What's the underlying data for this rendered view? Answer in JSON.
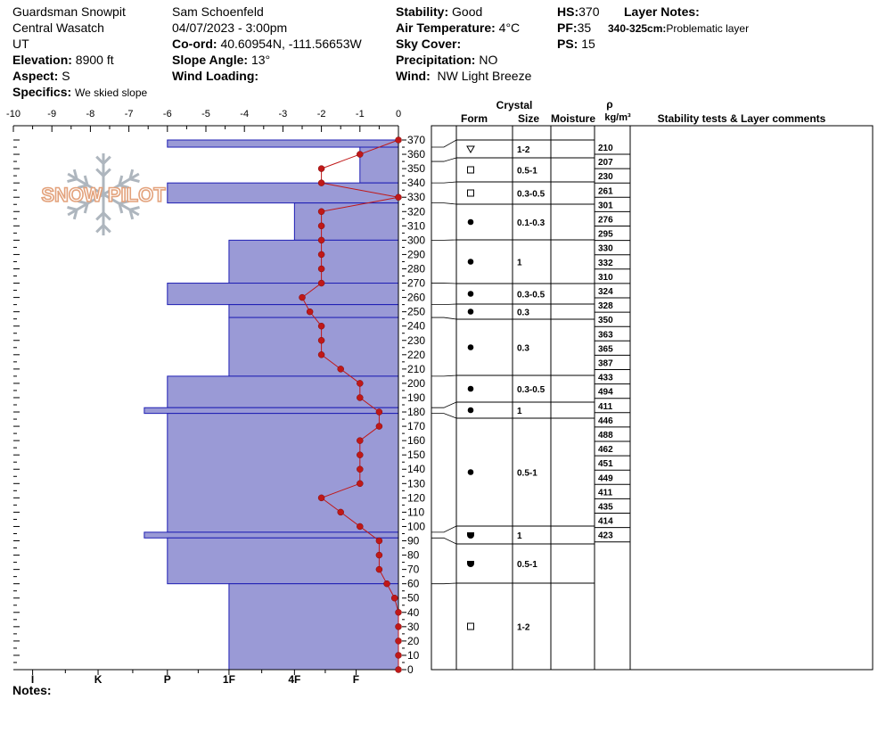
{
  "header": {
    "pit_name": "Guardsman Snowpit",
    "range": "Central Wasatch",
    "state": "UT",
    "elevation_label": "Elevation:",
    "elevation": "8900 ft",
    "aspect_label": "Aspect:",
    "aspect": "S",
    "specifics_label": "Specifics:",
    "specifics": "We skied slope",
    "observer": "Sam Schoenfeld",
    "datetime": "04/07/2023 - 3:00pm",
    "coord_label": "Co-ord:",
    "coord": "40.60954N, -111.56653W",
    "slope_label": "Slope Angle:",
    "slope": "13°",
    "wind_loading_label": "Wind Loading:",
    "wind_loading": "",
    "stability_label": "Stability:",
    "stability": "Good",
    "airtemp_label": "Air Temperature:",
    "airtemp": "4°C",
    "sky_label": "Sky Cover:",
    "sky": "",
    "precip_label": "Precipitation:",
    "precip": "NO",
    "wind_label": "Wind:",
    "wind": "NW Light Breeze",
    "hs_label": "HS:",
    "hs": "370",
    "pf_label": "PF:",
    "pf": "35",
    "ps_label": "PS:",
    "ps": "15",
    "layer_notes_label": "Layer Notes:",
    "layer_note_range": "340-325cm:",
    "layer_note_text": "Problematic layer"
  },
  "notes_label": "Notes:",
  "watermark": "SNOW PILOT",
  "colors": {
    "hardness_fill": "#9a9ad6",
    "hardness_stroke": "#1f1fb4",
    "temp_line": "#c01818",
    "grid": "#000000"
  },
  "table_headers": {
    "crystal": "Crystal",
    "form": "Form",
    "size": "Size",
    "moisture": "Moisture",
    "rho": "ρ",
    "density_unit": "kg/m³",
    "comments": "Stability tests & Layer comments"
  },
  "chart_data": {
    "type": "snow-profile",
    "temp_axis": {
      "min": -10,
      "max": 0,
      "ticks": [
        -10,
        -9,
        -8,
        -7,
        -6,
        -5,
        -4,
        -3,
        -2,
        -1,
        0
      ]
    },
    "height_axis": {
      "min": 0,
      "max": 370,
      "ticks": [
        0,
        10,
        20,
        30,
        40,
        50,
        60,
        70,
        80,
        90,
        100,
        110,
        120,
        130,
        140,
        150,
        160,
        170,
        180,
        190,
        200,
        210,
        220,
        230,
        240,
        250,
        260,
        270,
        280,
        290,
        300,
        310,
        320,
        330,
        340,
        350,
        360,
        370
      ]
    },
    "hardness_labels": [
      "I",
      "K",
      "P",
      "1F",
      "4F",
      "F"
    ],
    "hardness_layers": [
      {
        "bottom": 365,
        "top": 370,
        "hardness_temp": -6
      },
      {
        "bottom": 340,
        "top": 365,
        "hardness_temp": -1
      },
      {
        "bottom": 326,
        "top": 340,
        "hardness_temp": -6
      },
      {
        "bottom": 300,
        "top": 326,
        "hardness_temp": -2.7
      },
      {
        "bottom": 270,
        "top": 300,
        "hardness_temp": -4.4
      },
      {
        "bottom": 255,
        "top": 270,
        "hardness_temp": -6
      },
      {
        "bottom": 246,
        "top": 255,
        "hardness_temp": -4.4
      },
      {
        "bottom": 205,
        "top": 246,
        "hardness_temp": -4.4
      },
      {
        "bottom": 183,
        "top": 205,
        "hardness_temp": -6
      },
      {
        "bottom": 179,
        "top": 183,
        "hardness_temp": -6.6
      },
      {
        "bottom": 96,
        "top": 179,
        "hardness_temp": -6
      },
      {
        "bottom": 92,
        "top": 96,
        "hardness_temp": -6.6
      },
      {
        "bottom": 60,
        "top": 92,
        "hardness_temp": -6
      },
      {
        "bottom": 0,
        "top": 60,
        "hardness_temp": -4.4
      }
    ],
    "temperature_profile": [
      {
        "h": 370,
        "t": 0
      },
      {
        "h": 360,
        "t": -1
      },
      {
        "h": 350,
        "t": -2
      },
      {
        "h": 340,
        "t": -2
      },
      {
        "h": 330,
        "t": 0
      },
      {
        "h": 320,
        "t": -2
      },
      {
        "h": 310,
        "t": -2
      },
      {
        "h": 300,
        "t": -2
      },
      {
        "h": 290,
        "t": -2
      },
      {
        "h": 280,
        "t": -2
      },
      {
        "h": 270,
        "t": -2
      },
      {
        "h": 260,
        "t": -2.5
      },
      {
        "h": 250,
        "t": -2.3
      },
      {
        "h": 240,
        "t": -2
      },
      {
        "h": 230,
        "t": -2
      },
      {
        "h": 220,
        "t": -2
      },
      {
        "h": 210,
        "t": -1.5
      },
      {
        "h": 200,
        "t": -1
      },
      {
        "h": 190,
        "t": -1
      },
      {
        "h": 180,
        "t": -0.5
      },
      {
        "h": 170,
        "t": -0.5
      },
      {
        "h": 160,
        "t": -1
      },
      {
        "h": 150,
        "t": -1
      },
      {
        "h": 140,
        "t": -1
      },
      {
        "h": 130,
        "t": -1
      },
      {
        "h": 120,
        "t": -2
      },
      {
        "h": 110,
        "t": -1.5
      },
      {
        "h": 100,
        "t": -1
      },
      {
        "h": 90,
        "t": -0.5
      },
      {
        "h": 80,
        "t": -0.5
      },
      {
        "h": 70,
        "t": -0.5
      },
      {
        "h": 60,
        "t": -0.3
      },
      {
        "h": 50,
        "t": -0.1
      },
      {
        "h": 40,
        "t": 0
      },
      {
        "h": 30,
        "t": 0
      },
      {
        "h": 20,
        "t": 0
      },
      {
        "h": 10,
        "t": 0
      },
      {
        "h": 0,
        "t": 0
      }
    ],
    "strat_layers": [
      {
        "top": 370,
        "bottom": 365,
        "form": "",
        "size": ""
      },
      {
        "top": 365,
        "bottom": 355,
        "form": "facets-rounding",
        "size": "1-2"
      },
      {
        "top": 355,
        "bottom": 340,
        "form": "faceted",
        "size": "0.5-1"
      },
      {
        "top": 340,
        "bottom": 326,
        "form": "faceted",
        "size": "0.3-0.5"
      },
      {
        "top": 326,
        "bottom": 300,
        "form": "rounded",
        "size": "0.1-0.3"
      },
      {
        "top": 300,
        "bottom": 270,
        "form": "rounded",
        "size": "1"
      },
      {
        "top": 270,
        "bottom": 255,
        "form": "rounded",
        "size": "0.3-0.5"
      },
      {
        "top": 255,
        "bottom": 246,
        "form": "rounded",
        "size": "0.3"
      },
      {
        "top": 246,
        "bottom": 205,
        "form": "rounded",
        "size": "0.3"
      },
      {
        "top": 205,
        "bottom": 183,
        "form": "rounded",
        "size": "0.3-0.5"
      },
      {
        "top": 183,
        "bottom": 179,
        "form": "rounded",
        "size": "1"
      },
      {
        "top": 179,
        "bottom": 96,
        "form": "rounded",
        "size": "0.5-1"
      },
      {
        "top": 96,
        "bottom": 92,
        "form": "depth-hoar",
        "size": "1"
      },
      {
        "top": 92,
        "bottom": 60,
        "form": "depth-hoar",
        "size": "0.5-1"
      },
      {
        "top": 60,
        "bottom": 0,
        "form": "faceted",
        "size": "1-2"
      }
    ],
    "densities": [
      {
        "h": 367,
        "v": "210"
      },
      {
        "h": 357,
        "v": "207"
      },
      {
        "h": 347,
        "v": "230"
      },
      {
        "h": 335,
        "v": "261"
      },
      {
        "h": 325,
        "v": "301"
      },
      {
        "h": 315,
        "v": "276"
      },
      {
        "h": 305,
        "v": "295"
      },
      {
        "h": 295,
        "v": "330"
      },
      {
        "h": 285,
        "v": "332"
      },
      {
        "h": 275,
        "v": "310"
      },
      {
        "h": 265,
        "v": "324"
      },
      {
        "h": 255,
        "v": "328"
      },
      {
        "h": 245,
        "v": "350"
      },
      {
        "h": 235,
        "v": "363"
      },
      {
        "h": 225,
        "v": "365"
      },
      {
        "h": 215,
        "v": "387"
      },
      {
        "h": 205,
        "v": "433"
      },
      {
        "h": 195,
        "v": "494"
      },
      {
        "h": 185,
        "v": "411"
      },
      {
        "h": 175,
        "v": "446"
      },
      {
        "h": 165,
        "v": "488"
      },
      {
        "h": 155,
        "v": "462"
      },
      {
        "h": 145,
        "v": "451"
      },
      {
        "h": 135,
        "v": "449"
      },
      {
        "h": 125,
        "v": "411"
      },
      {
        "h": 115,
        "v": "435"
      },
      {
        "h": 105,
        "v": "414"
      },
      {
        "h": 95,
        "v": "423"
      }
    ]
  }
}
